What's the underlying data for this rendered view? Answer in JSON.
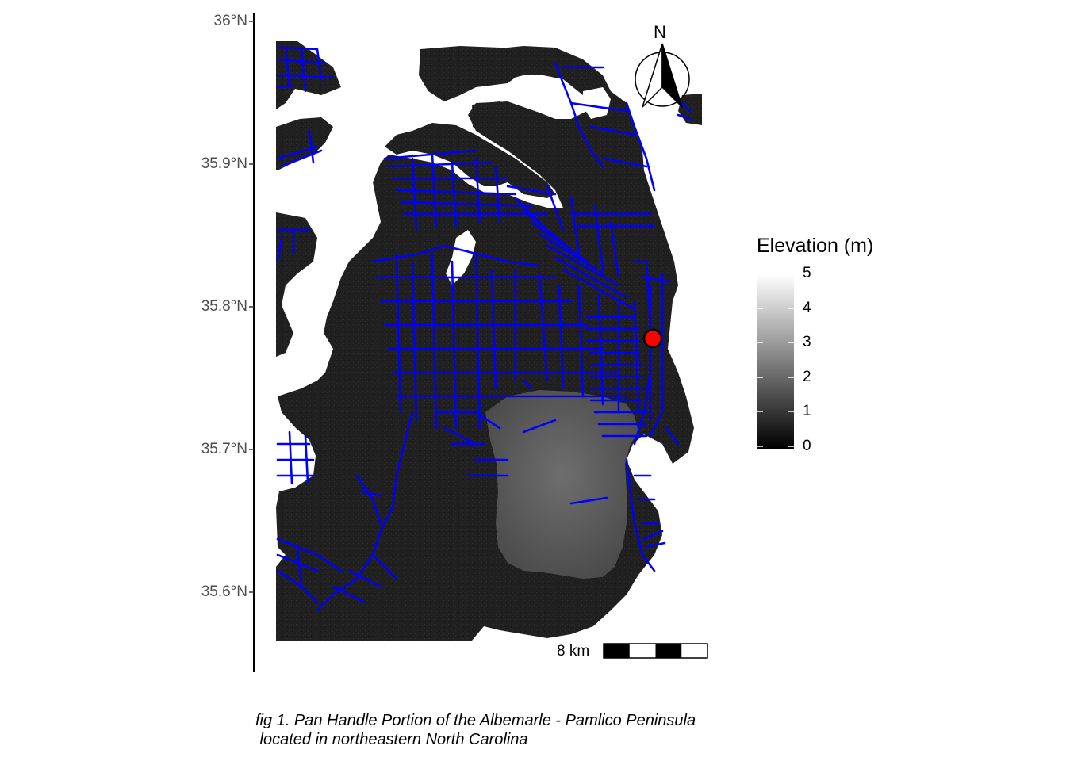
{
  "map": {
    "lat_axis": {
      "ticks": [
        "36°N",
        "35.9°N",
        "35.8°N",
        "35.7°N",
        "35.6°N"
      ]
    },
    "north_arrow": {
      "label": "N"
    },
    "legend": {
      "title": "Elevation (m)",
      "labels": [
        "5",
        "4",
        "3",
        "2",
        "1",
        "0"
      ],
      "range": [
        0,
        5
      ],
      "colors": {
        "low": "#000000",
        "high": "#ffffff"
      }
    },
    "scale_bar": {
      "label": "8 km"
    },
    "point_marker": {
      "color": "#ff0000",
      "outline": "#000000"
    },
    "road_color": "#0000ff"
  },
  "caption": {
    "line1": "fig 1. Pan Handle Portion of the Albemarle - Pamlico Peninsula",
    "line2": " located in northeastern North Carolina"
  }
}
